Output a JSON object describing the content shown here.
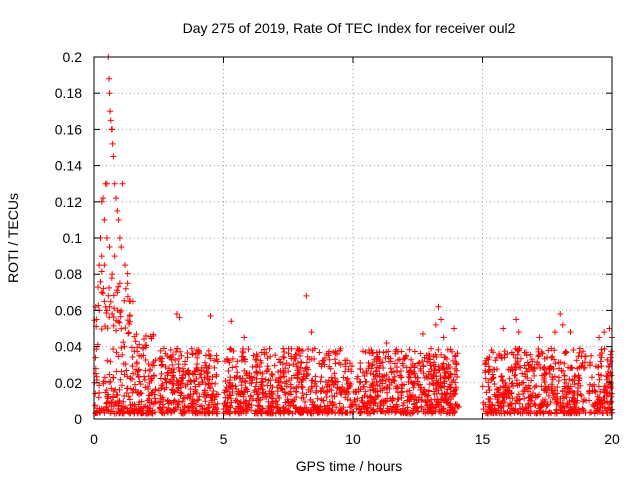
{
  "chart_data": {
    "type": "scatter",
    "title": "Day 275 of 2019, Rate Of TEC Index for receiver oul2",
    "xlabel": "GPS time / hours",
    "ylabel": "ROTI / TECUs",
    "xlim": [
      0,
      20
    ],
    "ylim": [
      0,
      0.2
    ],
    "xticks": [
      0,
      5,
      10,
      15,
      20
    ],
    "xtick_labels": [
      "0",
      "5",
      "10",
      "15",
      "20"
    ],
    "yticks": [
      0,
      0.02,
      0.04,
      0.06,
      0.08,
      0.1,
      0.12,
      0.14,
      0.16,
      0.18,
      0.2
    ],
    "ytick_labels": [
      "0",
      "0.02",
      "0.04",
      "0.06",
      "0.08",
      "0.1",
      "0.12",
      "0.14",
      "0.16",
      "0.18",
      "0.2"
    ],
    "grid": true,
    "marker": "+",
    "marker_color": "#ff0000",
    "data_gaps_hours": [
      [
        2.4,
        2.5
      ],
      [
        4.8,
        5.0
      ],
      [
        14.1,
        15.0
      ],
      [
        19.0,
        19.1
      ]
    ],
    "series": [
      {
        "name": "oul2",
        "points": [
          [
            0.2,
            0.085
          ],
          [
            0.25,
            0.1
          ],
          [
            0.3,
            0.12
          ],
          [
            0.35,
            0.122
          ],
          [
            0.4,
            0.11
          ],
          [
            0.45,
            0.13
          ],
          [
            0.5,
            0.13
          ],
          [
            0.55,
            0.2
          ],
          [
            0.58,
            0.188
          ],
          [
            0.6,
            0.18
          ],
          [
            0.62,
            0.17
          ],
          [
            0.65,
            0.165
          ],
          [
            0.68,
            0.16
          ],
          [
            0.7,
            0.16
          ],
          [
            0.72,
            0.152
          ],
          [
            0.75,
            0.145
          ],
          [
            0.8,
            0.13
          ],
          [
            0.85,
            0.122
          ],
          [
            0.9,
            0.115
          ],
          [
            0.95,
            0.11
          ],
          [
            1.0,
            0.1
          ],
          [
            1.05,
            0.095
          ],
          [
            1.1,
            0.13
          ],
          [
            1.2,
            0.085
          ],
          [
            1.3,
            0.075
          ],
          [
            1.4,
            0.065
          ],
          [
            1.5,
            0.065
          ],
          [
            0.3,
            0.09
          ],
          [
            0.4,
            0.085
          ],
          [
            0.5,
            0.1
          ],
          [
            0.6,
            0.095
          ],
          [
            0.7,
            0.08
          ],
          [
            0.8,
            0.09
          ],
          [
            0.9,
            0.07
          ],
          [
            1.0,
            0.075
          ],
          [
            0.1,
            0.055
          ],
          [
            0.2,
            0.06
          ],
          [
            0.3,
            0.07
          ],
          [
            0.4,
            0.065
          ],
          [
            0.5,
            0.06
          ],
          [
            0.6,
            0.062
          ],
          [
            0.7,
            0.058
          ],
          [
            3.2,
            0.058
          ],
          [
            3.3,
            0.056
          ],
          [
            4.5,
            0.057
          ],
          [
            5.3,
            0.054
          ],
          [
            5.8,
            0.045
          ],
          [
            8.2,
            0.068
          ],
          [
            8.4,
            0.048
          ],
          [
            11.3,
            0.042
          ],
          [
            12.7,
            0.047
          ],
          [
            13.2,
            0.052
          ],
          [
            13.3,
            0.062
          ],
          [
            13.4,
            0.055
          ],
          [
            13.5,
            0.045
          ],
          [
            13.9,
            0.05
          ],
          [
            15.8,
            0.05
          ],
          [
            16.3,
            0.055
          ],
          [
            16.4,
            0.048
          ],
          [
            17.2,
            0.045
          ],
          [
            17.8,
            0.048
          ],
          [
            18.0,
            0.058
          ],
          [
            18.1,
            0.052
          ],
          [
            18.4,
            0.048
          ],
          [
            19.5,
            0.045
          ],
          [
            19.7,
            0.048
          ],
          [
            19.9,
            0.05
          ],
          [
            20.0,
            0.045
          ]
        ]
      }
    ]
  }
}
